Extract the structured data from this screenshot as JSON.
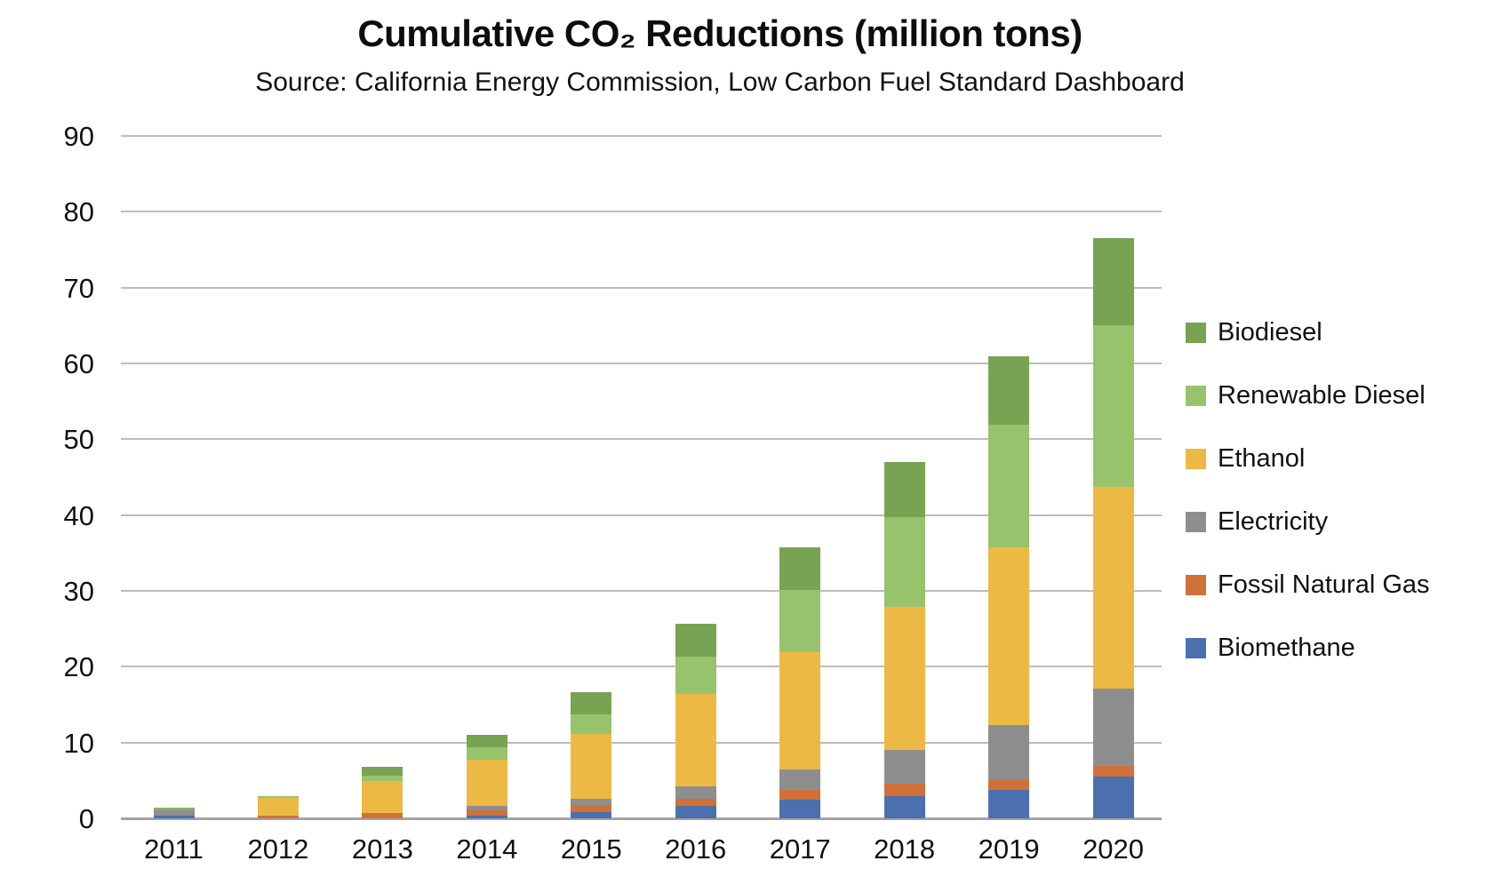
{
  "header": {
    "title": "Cumulative CO₂ Reductions (million tons)",
    "subtitle": "Source: California Energy Commission, Low Carbon Fuel Standard Dashboard"
  },
  "chart_data": {
    "type": "bar",
    "stacked": true,
    "title": "Cumulative CO₂ Reductions (million tons)",
    "subtitle": "Source: California Energy Commission, Low Carbon Fuel Standard Dashboard",
    "categories": [
      "2011",
      "2012",
      "2013",
      "2014",
      "2015",
      "2016",
      "2017",
      "2018",
      "2019",
      "2020"
    ],
    "series": [
      {
        "name": "Biomethane",
        "color": "#4c70ae",
        "values": [
          0.3,
          0,
          0,
          0.3,
          0.8,
          1.6,
          2.5,
          2.9,
          3.8,
          5.5
        ]
      },
      {
        "name": "Fossil Natural Gas",
        "color": "#cf7138",
        "values": [
          0,
          0.4,
          0.7,
          0.8,
          1.0,
          1.0,
          1.2,
          1.7,
          1.4,
          1.4
        ]
      },
      {
        "name": "Electricity",
        "color": "#8e8e8e",
        "values": [
          0.9,
          0,
          0,
          0.6,
          0.8,
          1.6,
          2.8,
          4.4,
          7.1,
          10.2
        ]
      },
      {
        "name": "Ethanol",
        "color": "#edb945",
        "values": [
          0,
          2.3,
          4.2,
          6.0,
          8.5,
          12.2,
          15.4,
          18.9,
          23.4,
          26.6
        ]
      },
      {
        "name": "Renewable Diesel",
        "color": "#97c36c",
        "values": [
          0.1,
          0.2,
          0.7,
          1.7,
          2.6,
          4.9,
          8.2,
          11.8,
          16.2,
          21.4
        ]
      },
      {
        "name": "Biodiesel",
        "color": "#77a352",
        "values": [
          0.1,
          0,
          1.2,
          1.6,
          2.9,
          4.4,
          5.7,
          7.3,
          9.1,
          11.4
        ]
      }
    ],
    "totals": [
      1.4,
      2.9,
      6.8,
      11.0,
      16.6,
      25.7,
      35.8,
      47.0,
      61.0,
      76.5
    ],
    "legend": [
      "Biodiesel",
      "Renewable Diesel",
      "Ethanol",
      "Electricity",
      "Fossil Natural Gas",
      "Biomethane"
    ],
    "legend_position": "right",
    "grid": true,
    "xlabel": "",
    "ylabel": "",
    "ylim": [
      0,
      90
    ],
    "ytick_step": 10,
    "yticks": [
      0,
      10,
      20,
      30,
      40,
      50,
      60,
      70,
      80,
      90
    ]
  },
  "colors": {
    "background": "#ffffff",
    "gridline": "#bcbcbc",
    "axis_line": "#a3a3a3",
    "text": "#111111"
  }
}
